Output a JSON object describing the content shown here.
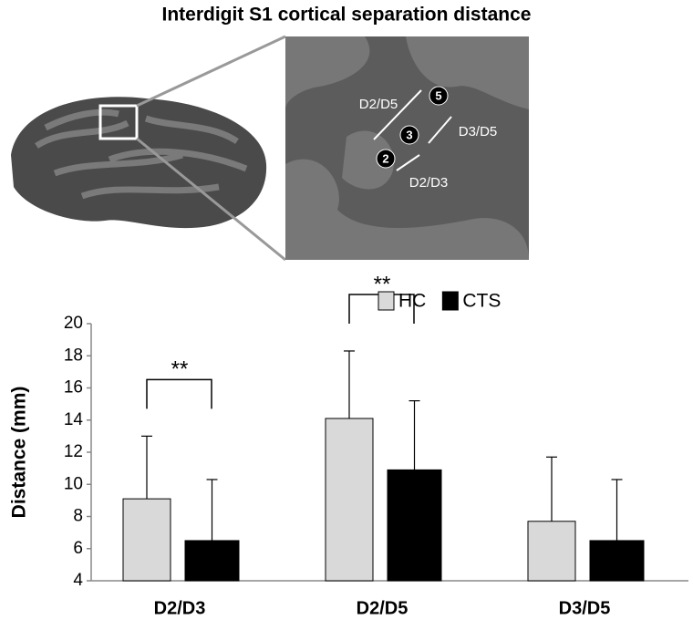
{
  "chart_data": {
    "type": "bar",
    "title": "Interdigit S1 cortical separation distance",
    "y_label": "Distance (mm)",
    "categories": [
      "D2/D3",
      "D2/D5",
      "D3/D5"
    ],
    "series": [
      {
        "name": "HC",
        "color": "#d9d9d9",
        "values": [
          9.1,
          14.1,
          7.7
        ],
        "errors": [
          3.9,
          4.2,
          4.0
        ]
      },
      {
        "name": "CTS",
        "color": "#000000",
        "values": [
          6.5,
          10.9,
          6.5
        ],
        "errors": [
          3.8,
          4.3,
          3.8
        ]
      }
    ],
    "annotations": [
      "**",
      "**"
    ],
    "ylim": [
      4,
      20
    ],
    "yticks": [
      4,
      6,
      8,
      10,
      12,
      14,
      16,
      18,
      20
    ],
    "legend": "top-right"
  },
  "illustration": {
    "markers": [
      "5",
      "3",
      "2"
    ],
    "labels": [
      "D2/D5",
      "D3/D5",
      "D2/D3"
    ]
  }
}
